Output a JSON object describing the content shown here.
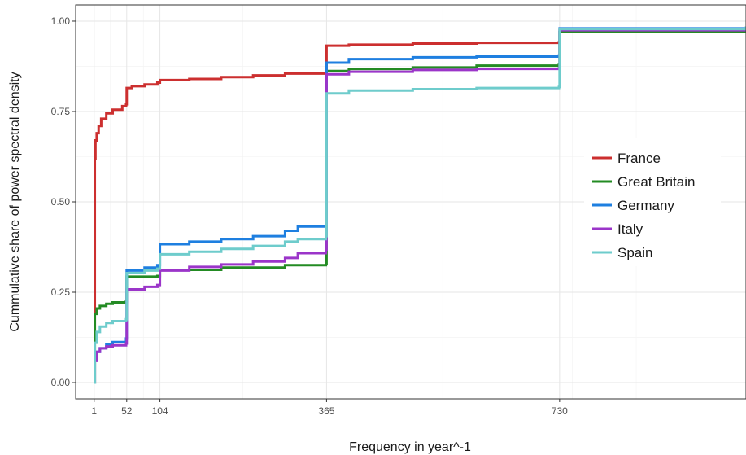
{
  "chart_data": {
    "type": "line",
    "xlabel": "Frequency in year^-1",
    "ylabel": "Cummulative share of power spectral density",
    "xlim": [
      -28,
      1022
    ],
    "ylim": [
      -0.045,
      1.045
    ],
    "x_ticks": [
      1,
      52,
      104,
      365,
      730
    ],
    "x_tick_labels": [
      "1",
      "52",
      "104",
      "365",
      "730"
    ],
    "x_minor_grid": [
      26,
      78,
      234,
      547,
      750,
      850
    ],
    "y_ticks": [
      0,
      0.25,
      0.5,
      0.75,
      1.0
    ],
    "y_tick_labels": [
      "0.00",
      "0.25",
      "0.50",
      "0.75",
      "1.00"
    ],
    "grid": true,
    "legend_position": "right",
    "series": [
      {
        "name": "France",
        "color": "#cc2f2f",
        "x": [
          1,
          2,
          3,
          5,
          8,
          12,
          20,
          30,
          45,
          51,
          52,
          60,
          80,
          100,
          104,
          150,
          200,
          250,
          300,
          364,
          365,
          400,
          500,
          600,
          729,
          730,
          800,
          1022
        ],
        "y": [
          0.0,
          0.62,
          0.67,
          0.69,
          0.71,
          0.73,
          0.745,
          0.755,
          0.765,
          0.77,
          0.815,
          0.82,
          0.825,
          0.83,
          0.837,
          0.84,
          0.845,
          0.85,
          0.855,
          0.857,
          0.932,
          0.935,
          0.938,
          0.94,
          0.942,
          0.97,
          0.973,
          0.978
        ]
      },
      {
        "name": "Great Britain",
        "color": "#238b23",
        "x": [
          1,
          2,
          5,
          10,
          20,
          30,
          51,
          52,
          100,
          104,
          200,
          300,
          364,
          365,
          400,
          500,
          600,
          729,
          730,
          1022
        ],
        "y": [
          0.0,
          0.19,
          0.205,
          0.212,
          0.218,
          0.222,
          0.225,
          0.293,
          0.295,
          0.312,
          0.318,
          0.325,
          0.33,
          0.862,
          0.868,
          0.872,
          0.877,
          0.88,
          0.97,
          0.975
        ]
      },
      {
        "name": "Germany",
        "color": "#1e7fe0",
        "x": [
          1,
          2,
          5,
          10,
          20,
          30,
          51,
          52,
          80,
          100,
          104,
          150,
          200,
          250,
          300,
          320,
          364,
          365,
          400,
          500,
          600,
          729,
          730,
          1022
        ],
        "y": [
          0.0,
          0.065,
          0.085,
          0.095,
          0.105,
          0.112,
          0.122,
          0.31,
          0.318,
          0.325,
          0.383,
          0.39,
          0.397,
          0.405,
          0.42,
          0.432,
          0.44,
          0.885,
          0.895,
          0.9,
          0.902,
          0.905,
          0.98,
          0.985
        ]
      },
      {
        "name": "Italy",
        "color": "#9b35c9",
        "x": [
          1,
          2,
          5,
          10,
          20,
          30,
          51,
          52,
          80,
          100,
          104,
          150,
          200,
          250,
          300,
          320,
          364,
          365,
          400,
          500,
          600,
          729,
          730,
          1022
        ],
        "y": [
          0.0,
          0.06,
          0.085,
          0.095,
          0.1,
          0.103,
          0.108,
          0.258,
          0.265,
          0.27,
          0.31,
          0.32,
          0.327,
          0.335,
          0.345,
          0.358,
          0.368,
          0.853,
          0.86,
          0.865,
          0.868,
          0.87,
          0.975,
          0.98
        ]
      },
      {
        "name": "Spain",
        "color": "#6ecccc",
        "x": [
          1,
          2,
          5,
          10,
          20,
          30,
          51,
          52,
          80,
          100,
          104,
          150,
          200,
          250,
          300,
          320,
          364,
          365,
          400,
          500,
          600,
          729,
          730,
          1022
        ],
        "y": [
          0.0,
          0.11,
          0.14,
          0.155,
          0.165,
          0.17,
          0.175,
          0.303,
          0.31,
          0.315,
          0.355,
          0.362,
          0.37,
          0.378,
          0.39,
          0.397,
          0.405,
          0.8,
          0.808,
          0.812,
          0.815,
          0.818,
          0.978,
          0.985
        ]
      }
    ]
  }
}
